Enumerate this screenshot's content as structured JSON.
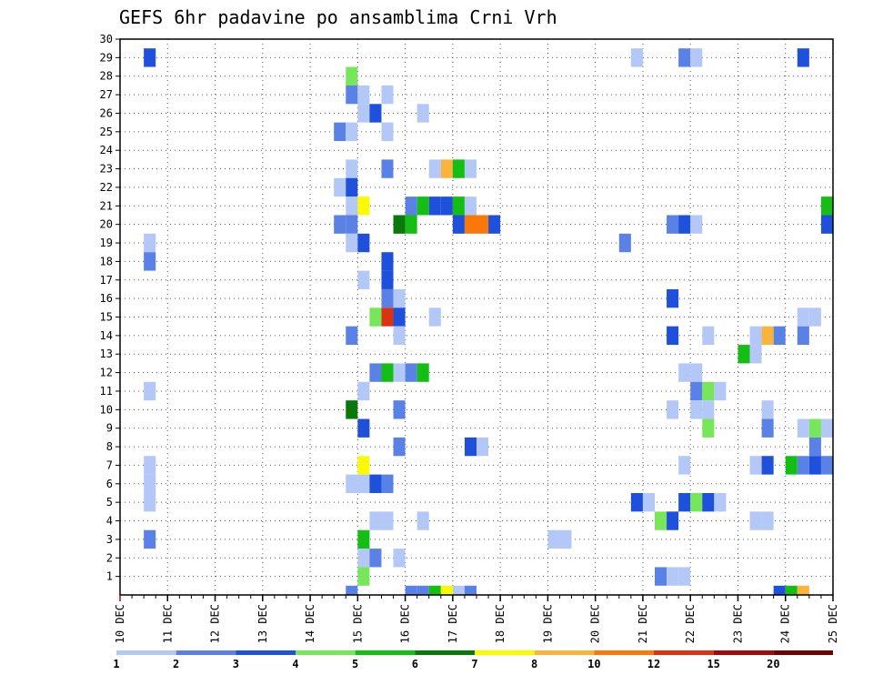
{
  "chart_data": {
    "type": "heatmap",
    "title": "GEFS 6hr padavine po ansamblima Crni Vrh",
    "xlabel": "",
    "ylabel": "",
    "x_ticks": [
      "10 DEC",
      "11 DEC",
      "12 DEC",
      "13 DEC",
      "14 DEC",
      "15 DEC",
      "16 DEC",
      "17 DEC",
      "18 DEC",
      "19 DEC",
      "20 DEC",
      "21 DEC",
      "22 DEC",
      "23 DEC",
      "24 DEC",
      "25 DEC"
    ],
    "y_ticks": [
      "1",
      "2",
      "3",
      "4",
      "5",
      "6",
      "7",
      "8",
      "9",
      "10",
      "11",
      "12",
      "13",
      "14",
      "15",
      "16",
      "17",
      "18",
      "19",
      "20",
      "21",
      "22",
      "23",
      "24",
      "25",
      "26",
      "27",
      "28",
      "29",
      "30"
    ],
    "xlim": [
      0,
      15
    ],
    "ylim": [
      0,
      30
    ],
    "x_step_days": 0.25,
    "grid": "dotted",
    "colorbar": {
      "labels": [
        "1",
        "2",
        "3",
        "4",
        "5",
        "6",
        "7",
        "8",
        "10",
        "12",
        "15",
        "20"
      ],
      "colors": [
        "#b4c8f8",
        "#5a82e6",
        "#1e50dc",
        "#78e65a",
        "#14be14",
        "#0a780a",
        "#fafa00",
        "#fab43c",
        "#fa780a",
        "#dc3214",
        "#a00a0a",
        "#6e0000"
      ]
    },
    "cells": [
      [
        0.5,
        29,
        3
      ],
      [
        10.75,
        29,
        1
      ],
      [
        11.75,
        29,
        2
      ],
      [
        12,
        29,
        1
      ],
      [
        14.25,
        29,
        3
      ],
      [
        4.75,
        28,
        4
      ],
      [
        4.75,
        27,
        2
      ],
      [
        5,
        27,
        1
      ],
      [
        5.5,
        27,
        1
      ],
      [
        5,
        26,
        1
      ],
      [
        5.25,
        26,
        3
      ],
      [
        6.25,
        26,
        1
      ],
      [
        4.5,
        25,
        2
      ],
      [
        4.75,
        25,
        1
      ],
      [
        5.5,
        25,
        1
      ],
      [
        4.75,
        23,
        1
      ],
      [
        5.5,
        23,
        2
      ],
      [
        6.5,
        23,
        1
      ],
      [
        6.75,
        23,
        8
      ],
      [
        7,
        23,
        5
      ],
      [
        7.25,
        23,
        1
      ],
      [
        4.5,
        22,
        1
      ],
      [
        4.75,
        22,
        3
      ],
      [
        4.75,
        21,
        1
      ],
      [
        5,
        21,
        7
      ],
      [
        6,
        21,
        2
      ],
      [
        6.25,
        21,
        5
      ],
      [
        6.5,
        21,
        3
      ],
      [
        6.75,
        21,
        3
      ],
      [
        7,
        21,
        5
      ],
      [
        7.25,
        21,
        1
      ],
      [
        14.75,
        21,
        5
      ],
      [
        4.5,
        20,
        2
      ],
      [
        4.75,
        20,
        2
      ],
      [
        5.75,
        20,
        6
      ],
      [
        6,
        20,
        5
      ],
      [
        7,
        20,
        3
      ],
      [
        7.25,
        20,
        9
      ],
      [
        7.5,
        20,
        9
      ],
      [
        7.75,
        20,
        3
      ],
      [
        11.5,
        20,
        2
      ],
      [
        11.75,
        20,
        3
      ],
      [
        12,
        20,
        1
      ],
      [
        14.75,
        20,
        3
      ],
      [
        0.5,
        19,
        1
      ],
      [
        4.75,
        19,
        1
      ],
      [
        5,
        19,
        3
      ],
      [
        10.5,
        19,
        2
      ],
      [
        0.5,
        18,
        2
      ],
      [
        5.5,
        18,
        3
      ],
      [
        5,
        17,
        1
      ],
      [
        5.5,
        17,
        3
      ],
      [
        5.5,
        16,
        2
      ],
      [
        5.75,
        16,
        1
      ],
      [
        11.5,
        16,
        3
      ],
      [
        5.25,
        15,
        4
      ],
      [
        5.5,
        15,
        10
      ],
      [
        5.75,
        15,
        3
      ],
      [
        6.5,
        15,
        1
      ],
      [
        14.25,
        15,
        1
      ],
      [
        14.5,
        15,
        1
      ],
      [
        4.75,
        14,
        2
      ],
      [
        5.75,
        14,
        1
      ],
      [
        11.5,
        14,
        3
      ],
      [
        12.25,
        14,
        1
      ],
      [
        13.25,
        14,
        1
      ],
      [
        13.5,
        14,
        8
      ],
      [
        13.75,
        14,
        2
      ],
      [
        14.25,
        14,
        2
      ],
      [
        13,
        13,
        5
      ],
      [
        13.25,
        13,
        1
      ],
      [
        5.25,
        12,
        2
      ],
      [
        5.5,
        12,
        5
      ],
      [
        5.75,
        12,
        1
      ],
      [
        6,
        12,
        2
      ],
      [
        6.25,
        12,
        5
      ],
      [
        11.75,
        12,
        1
      ],
      [
        12,
        12,
        1
      ],
      [
        0.5,
        11,
        1
      ],
      [
        5,
        11,
        1
      ],
      [
        12,
        11,
        2
      ],
      [
        12.25,
        11,
        4
      ],
      [
        12.5,
        11,
        1
      ],
      [
        4.75,
        10,
        6
      ],
      [
        5.75,
        10,
        2
      ],
      [
        11.5,
        10,
        1
      ],
      [
        12,
        10,
        1
      ],
      [
        12.25,
        10,
        1
      ],
      [
        13.5,
        10,
        1
      ],
      [
        5,
        9,
        3
      ],
      [
        12.25,
        9,
        4
      ],
      [
        13.5,
        9,
        2
      ],
      [
        14.25,
        9,
        1
      ],
      [
        14.5,
        9,
        4
      ],
      [
        14.75,
        9,
        1
      ],
      [
        5.75,
        8,
        2
      ],
      [
        7.25,
        8,
        3
      ],
      [
        7.5,
        8,
        1
      ],
      [
        14.5,
        8,
        2
      ],
      [
        0.5,
        7,
        1
      ],
      [
        5,
        7,
        7
      ],
      [
        11.75,
        7,
        1
      ],
      [
        13.25,
        7,
        1
      ],
      [
        13.5,
        7,
        3
      ],
      [
        14,
        7,
        5
      ],
      [
        14.25,
        7,
        2
      ],
      [
        14.5,
        7,
        3
      ],
      [
        14.75,
        7,
        2
      ],
      [
        0.5,
        6,
        1
      ],
      [
        4.75,
        6,
        1
      ],
      [
        5,
        6,
        1
      ],
      [
        5.25,
        6,
        3
      ],
      [
        5.5,
        6,
        2
      ],
      [
        0.5,
        5,
        1
      ],
      [
        10.75,
        5,
        3
      ],
      [
        11,
        5,
        1
      ],
      [
        11.75,
        5,
        3
      ],
      [
        12,
        5,
        4
      ],
      [
        12.25,
        5,
        3
      ],
      [
        12.5,
        5,
        1
      ],
      [
        5.25,
        4,
        1
      ],
      [
        5.5,
        4,
        1
      ],
      [
        6.25,
        4,
        1
      ],
      [
        11.25,
        4,
        4
      ],
      [
        11.5,
        4,
        3
      ],
      [
        13.25,
        4,
        1
      ],
      [
        13.5,
        4,
        1
      ],
      [
        0.5,
        3,
        2
      ],
      [
        5,
        3,
        5
      ],
      [
        9,
        3,
        1
      ],
      [
        9.25,
        3,
        1
      ],
      [
        5,
        2,
        1
      ],
      [
        5.25,
        2,
        2
      ],
      [
        5.75,
        2,
        1
      ],
      [
        5,
        1,
        4
      ],
      [
        11.25,
        1,
        2
      ],
      [
        11.5,
        1,
        1
      ],
      [
        11.75,
        1,
        1
      ],
      [
        4.75,
        0,
        2
      ],
      [
        6,
        0,
        2
      ],
      [
        6.25,
        0,
        2
      ],
      [
        6.5,
        0,
        5
      ],
      [
        6.75,
        0,
        7
      ],
      [
        7,
        0,
        1
      ],
      [
        7.25,
        0,
        2
      ],
      [
        13.75,
        0,
        3
      ],
      [
        14,
        0,
        5
      ],
      [
        14.25,
        0,
        8
      ]
    ]
  }
}
